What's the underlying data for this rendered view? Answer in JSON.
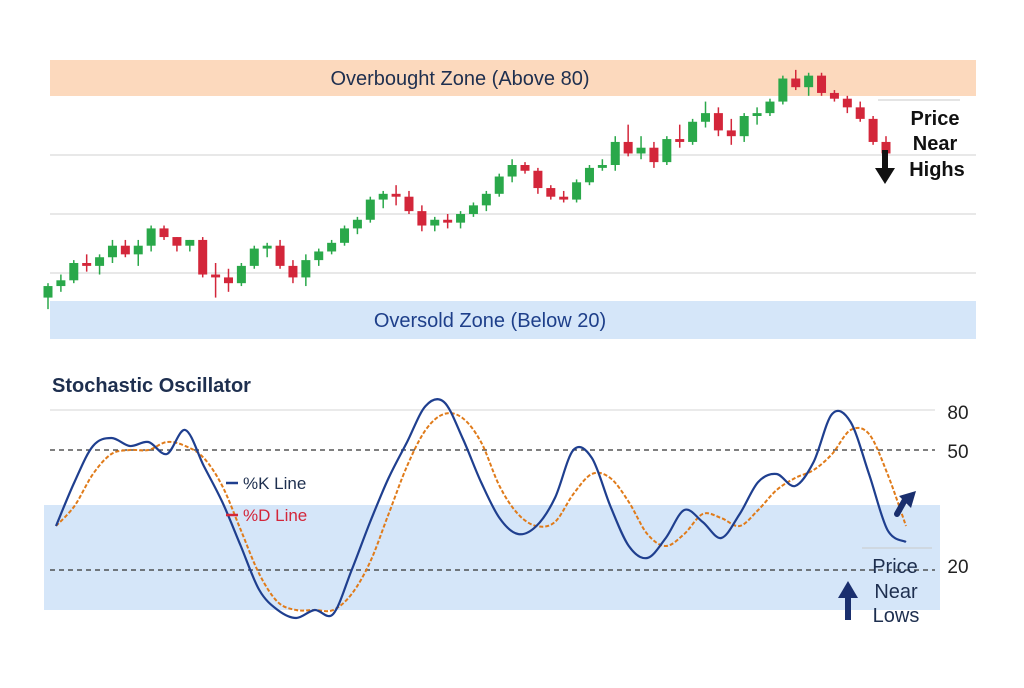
{
  "colors": {
    "overbought_band": "#fcd9bd",
    "oversold_band": "#d5e6f9",
    "bull": "#2aa84a",
    "bear": "#d3263a",
    "k_line": "#1f3f8f",
    "d_line": "#e07b1a",
    "text_dark": "#1e2f4f",
    "grid": "#d0d0d0"
  },
  "price_panel": {
    "overbought_label": "Overbought Zone (Above 80)",
    "oversold_label": "Oversold Zone (Below 20)",
    "annotation": {
      "line1": "Price",
      "line2": "Near",
      "line3": "Highs",
      "icon": "down-arrow-icon"
    }
  },
  "oscillator_panel": {
    "title": "Stochastic Oscillator",
    "legend": {
      "k_label": "%K Line",
      "d_label": "%D Line"
    },
    "annotation": {
      "line1": "Price",
      "line2": "Near",
      "line3": "Lows",
      "icon": "up-arrow-icon"
    },
    "turn_icon": "up-right-arrow-icon"
  },
  "chart_data": [
    {
      "type": "candlestick",
      "title": "",
      "note": "unlabeled price axis; values are relative price levels",
      "candles": [
        {
          "o": 10,
          "h": 15,
          "l": 6,
          "c": 14
        },
        {
          "o": 14,
          "h": 18,
          "l": 12,
          "c": 16
        },
        {
          "o": 16,
          "h": 23,
          "l": 15,
          "c": 22
        },
        {
          "o": 22,
          "h": 25,
          "l": 19,
          "c": 21
        },
        {
          "o": 21,
          "h": 25,
          "l": 18,
          "c": 24
        },
        {
          "o": 24,
          "h": 30,
          "l": 22,
          "c": 28
        },
        {
          "o": 28,
          "h": 30,
          "l": 24,
          "c": 25
        },
        {
          "o": 25,
          "h": 30,
          "l": 21,
          "c": 28
        },
        {
          "o": 28,
          "h": 35,
          "l": 26,
          "c": 34
        },
        {
          "o": 34,
          "h": 35,
          "l": 30,
          "c": 31
        },
        {
          "o": 31,
          "h": 31,
          "l": 26,
          "c": 28
        },
        {
          "o": 28,
          "h": 30,
          "l": 26,
          "c": 30
        },
        {
          "o": 30,
          "h": 31,
          "l": 17,
          "c": 18
        },
        {
          "o": 18,
          "h": 22,
          "l": 10,
          "c": 17
        },
        {
          "o": 17,
          "h": 20,
          "l": 12,
          "c": 15
        },
        {
          "o": 15,
          "h": 22,
          "l": 14,
          "c": 21
        },
        {
          "o": 21,
          "h": 28,
          "l": 20,
          "c": 27
        },
        {
          "o": 27,
          "h": 29,
          "l": 24,
          "c": 28
        },
        {
          "o": 28,
          "h": 30,
          "l": 20,
          "c": 21
        },
        {
          "o": 21,
          "h": 23,
          "l": 15,
          "c": 17
        },
        {
          "o": 17,
          "h": 25,
          "l": 14,
          "c": 23
        },
        {
          "o": 23,
          "h": 27,
          "l": 21,
          "c": 26
        },
        {
          "o": 26,
          "h": 30,
          "l": 25,
          "c": 29
        },
        {
          "o": 29,
          "h": 35,
          "l": 28,
          "c": 34
        },
        {
          "o": 34,
          "h": 38,
          "l": 32,
          "c": 37
        },
        {
          "o": 37,
          "h": 45,
          "l": 36,
          "c": 44
        },
        {
          "o": 44,
          "h": 47,
          "l": 41,
          "c": 46
        },
        {
          "o": 46,
          "h": 49,
          "l": 42,
          "c": 45
        },
        {
          "o": 45,
          "h": 47,
          "l": 39,
          "c": 40
        },
        {
          "o": 40,
          "h": 42,
          "l": 33,
          "c": 35
        },
        {
          "o": 35,
          "h": 38,
          "l": 33,
          "c": 37
        },
        {
          "o": 37,
          "h": 39,
          "l": 34,
          "c": 36
        },
        {
          "o": 36,
          "h": 40,
          "l": 34,
          "c": 39
        },
        {
          "o": 39,
          "h": 43,
          "l": 38,
          "c": 42
        },
        {
          "o": 42,
          "h": 47,
          "l": 40,
          "c": 46
        },
        {
          "o": 46,
          "h": 53,
          "l": 45,
          "c": 52
        },
        {
          "o": 52,
          "h": 58,
          "l": 50,
          "c": 56
        },
        {
          "o": 56,
          "h": 57,
          "l": 53,
          "c": 54
        },
        {
          "o": 54,
          "h": 55,
          "l": 46,
          "c": 48
        },
        {
          "o": 48,
          "h": 49,
          "l": 44,
          "c": 45
        },
        {
          "o": 45,
          "h": 47,
          "l": 43,
          "c": 44
        },
        {
          "o": 44,
          "h": 51,
          "l": 43,
          "c": 50
        },
        {
          "o": 50,
          "h": 56,
          "l": 49,
          "c": 55
        },
        {
          "o": 55,
          "h": 58,
          "l": 54,
          "c": 56
        },
        {
          "o": 56,
          "h": 66,
          "l": 54,
          "c": 64
        },
        {
          "o": 64,
          "h": 70,
          "l": 59,
          "c": 60
        },
        {
          "o": 60,
          "h": 66,
          "l": 58,
          "c": 62
        },
        {
          "o": 62,
          "h": 64,
          "l": 55,
          "c": 57
        },
        {
          "o": 57,
          "h": 66,
          "l": 56,
          "c": 65
        },
        {
          "o": 65,
          "h": 70,
          "l": 62,
          "c": 64
        },
        {
          "o": 64,
          "h": 72,
          "l": 63,
          "c": 71
        },
        {
          "o": 71,
          "h": 78,
          "l": 69,
          "c": 74
        },
        {
          "o": 74,
          "h": 76,
          "l": 66,
          "c": 68
        },
        {
          "o": 68,
          "h": 72,
          "l": 63,
          "c": 66
        },
        {
          "o": 66,
          "h": 74,
          "l": 64,
          "c": 73
        },
        {
          "o": 73,
          "h": 76,
          "l": 70,
          "c": 74
        },
        {
          "o": 74,
          "h": 79,
          "l": 73,
          "c": 78
        },
        {
          "o": 78,
          "h": 87,
          "l": 77,
          "c": 86
        },
        {
          "o": 86,
          "h": 89,
          "l": 82,
          "c": 83
        },
        {
          "o": 83,
          "h": 88,
          "l": 80,
          "c": 87
        },
        {
          "o": 87,
          "h": 88,
          "l": 80,
          "c": 81
        },
        {
          "o": 81,
          "h": 82,
          "l": 78,
          "c": 79
        },
        {
          "o": 79,
          "h": 80,
          "l": 74,
          "c": 76
        },
        {
          "o": 76,
          "h": 78,
          "l": 71,
          "c": 72
        },
        {
          "o": 72,
          "h": 73,
          "l": 63,
          "c": 64
        },
        {
          "o": 64,
          "h": 66,
          "l": 58,
          "c": 60
        }
      ],
      "reference_lines": [
        {
          "label": "Overbought Zone (Above 80)",
          "kind": "band"
        },
        {
          "label": "Oversold Zone (Below 20)",
          "kind": "band"
        }
      ]
    },
    {
      "type": "line",
      "title": "Stochastic Oscillator",
      "xlabel": "",
      "ylabel": "",
      "y_ticks": [
        80,
        50,
        20
      ],
      "reference_lines": [
        50,
        20
      ],
      "shaded_band": "oversold region",
      "series": [
        {
          "name": "%K Line",
          "x": [
            0,
            3,
            6,
            9,
            12,
            15,
            18,
            21,
            24,
            27,
            30,
            33,
            36,
            39,
            42,
            45,
            48,
            51,
            54,
            57,
            60,
            63,
            66,
            69,
            72,
            75,
            78,
            81,
            84,
            87,
            90,
            93,
            96,
            99,
            102,
            105,
            108,
            111,
            114,
            117,
            120,
            123,
            126,
            129,
            132,
            135,
            138
          ],
          "y": [
            31,
            42,
            51,
            53,
            51,
            52,
            49,
            55,
            46,
            37,
            26,
            15,
            10,
            8,
            10,
            9,
            20,
            32,
            43,
            52,
            61,
            62,
            53,
            42,
            33,
            29,
            31,
            38,
            50,
            48,
            36,
            26,
            23,
            28,
            35,
            32,
            28,
            34,
            42,
            44,
            41,
            47,
            59,
            57,
            44,
            30,
            27
          ]
        },
        {
          "name": "%D Line",
          "x": [
            0,
            3,
            6,
            9,
            12,
            15,
            18,
            21,
            24,
            27,
            30,
            33,
            36,
            39,
            42,
            45,
            48,
            51,
            54,
            57,
            60,
            63,
            66,
            69,
            72,
            75,
            78,
            81,
            84,
            87,
            90,
            93,
            96,
            99,
            102,
            105,
            108,
            111,
            114,
            117,
            120,
            123,
            126,
            129,
            132,
            135,
            138
          ],
          "y": [
            31,
            36,
            44,
            49,
            50,
            50,
            52,
            51,
            48,
            41,
            30,
            19,
            12,
            10,
            10,
            10,
            14,
            22,
            34,
            46,
            55,
            59,
            58,
            52,
            41,
            34,
            31,
            32,
            39,
            44,
            43,
            37,
            29,
            26,
            29,
            34,
            33,
            31,
            35,
            40,
            43,
            45,
            49,
            55,
            54,
            44,
            31
          ]
        }
      ]
    }
  ]
}
